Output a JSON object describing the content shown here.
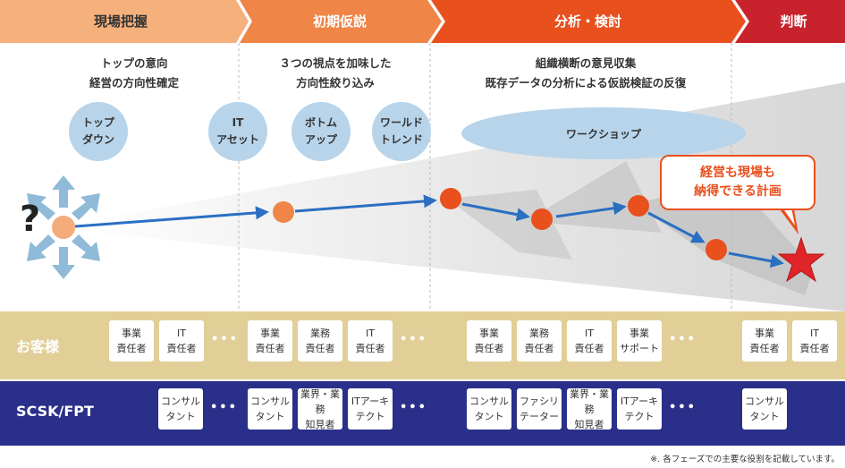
{
  "phases": [
    {
      "label": "現場把握",
      "color": "#f6b07c",
      "text_color": "#333333"
    },
    {
      "label": "初期仮説",
      "color": "#ef8546",
      "text_color": "#ffffff"
    },
    {
      "label": "分析・検討",
      "color": "#e8501e",
      "text_color": "#ffffff"
    },
    {
      "label": "判断",
      "color": "#c8232c",
      "text_color": "#ffffff"
    }
  ],
  "descriptions": {
    "genba": [
      "トップの意向",
      "経営の方向性確定"
    ],
    "shoki": [
      "３つの視点を加味した",
      "方向性絞り込み"
    ],
    "bunseki": [
      "組織横断の意見収集",
      "既存データの分析による仮説検証の反復"
    ]
  },
  "circles": {
    "top_down": "トップ\nダウン",
    "it_asset": "IT\nアセット",
    "bottom_up": "ボトム\nアップ",
    "world_trend": "ワールド\nトレンド",
    "workshop": "ワークショップ"
  },
  "question_mark": "?",
  "callout": "経営も現場も\n納得できる計画",
  "customer": {
    "label": "お客様",
    "band_color": "#e2cf98",
    "label_color": "#ffffff",
    "groups": [
      [
        "事業\n責任者",
        "IT\n責任者"
      ],
      [
        "事業\n責任者",
        "業務\n責任者",
        "IT\n責任者"
      ],
      [
        "事業\n責任者",
        "業務\n責任者",
        "IT\n責任者",
        "事業\nサポート"
      ],
      [
        "事業\n責任者",
        "IT\n責任者"
      ]
    ]
  },
  "scsk": {
    "label": "SCSK/FPT",
    "band_color": "#2a2f8a",
    "label_color": "#ffffff",
    "groups": [
      [
        "コンサル\nタント"
      ],
      [
        "コンサル\nタント",
        "業界・業務\n知見者",
        "ITアーキ\nテクト"
      ],
      [
        "コンサル\nタント",
        "ファシリ\nテーター",
        "業界・業務\n知見者",
        "ITアーキ\nテクト"
      ],
      [
        "コンサル\nタント"
      ]
    ]
  },
  "ellipsis": "•••",
  "footnote": "※. 各フェーズでの主要な役割を記載しています。",
  "colors": {
    "arrow": "#2a6fc2",
    "node_light": "#f3ac7a",
    "node_mid": "#ef8546",
    "node_dark": "#e8501e",
    "star": "#e0252a",
    "circle": "#b7d4ea",
    "burst": "#8fbad8"
  }
}
